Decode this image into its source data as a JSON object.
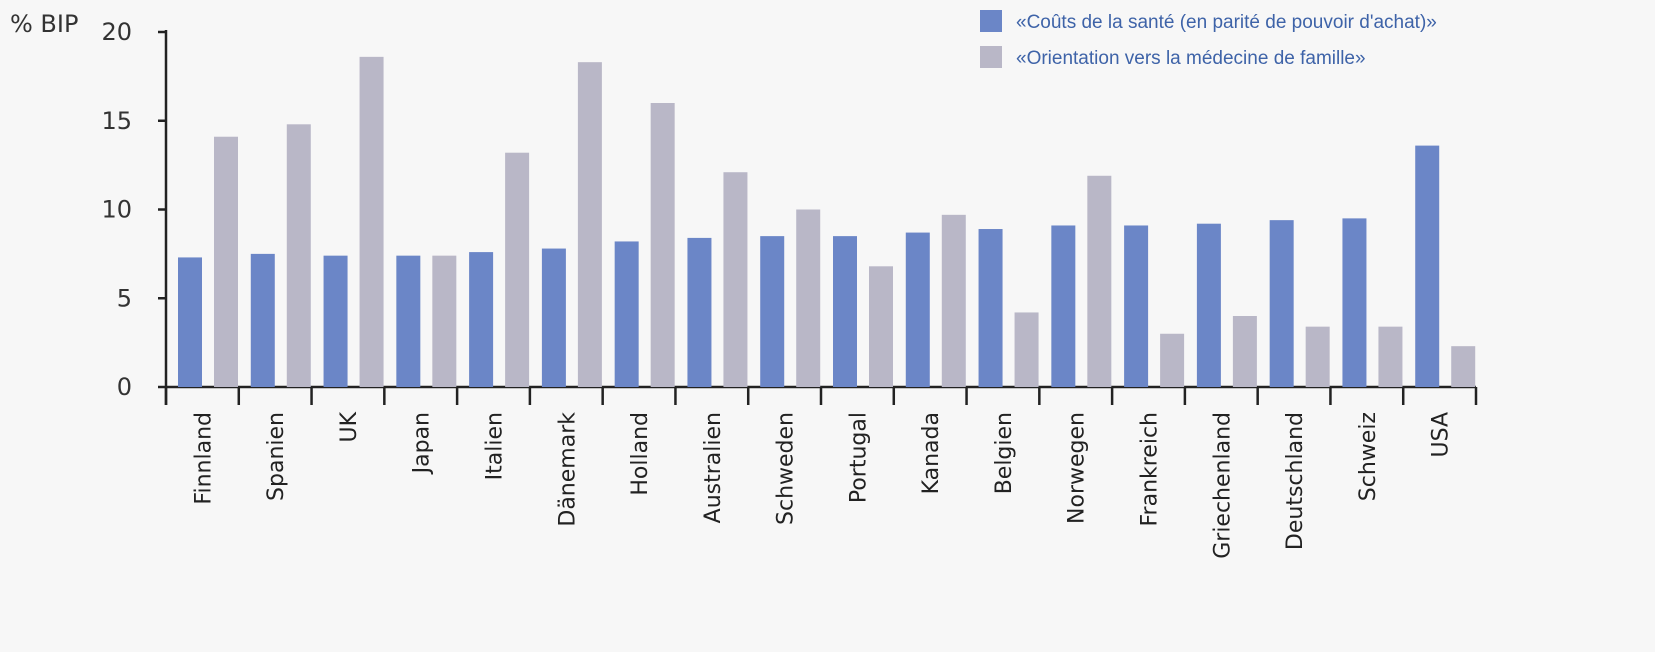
{
  "chart_data": {
    "type": "bar",
    "ylabel": "% BIP",
    "ylim": [
      0,
      20
    ],
    "yticks": [
      0,
      5,
      10,
      15,
      20
    ],
    "grid": false,
    "legend_placement": "top-right",
    "categories": [
      "Finnland",
      "Spanien",
      "UK",
      "Japan",
      "Italien",
      "Dänemark",
      "Holland",
      "Australien",
      "Schweden",
      "Portugal",
      "Kanada",
      "Belgien",
      "Norwegen",
      "Frankreich",
      "Griechenland",
      "Deutschland",
      "Schweiz",
      "USA"
    ],
    "series": [
      {
        "name": "«Coûts de la santé (en parité de pouvoir d'achat)»",
        "color": "#6b86c7",
        "values": [
          7.3,
          7.5,
          7.4,
          7.4,
          7.6,
          7.8,
          8.2,
          8.4,
          8.5,
          8.5,
          8.7,
          8.9,
          9.1,
          9.1,
          9.2,
          9.4,
          9.5,
          13.6
        ]
      },
      {
        "name": "«Orientation vers la médecine de famille»",
        "color": "#b9b7c7",
        "values": [
          14.1,
          14.8,
          18.6,
          7.4,
          13.2,
          18.3,
          16.0,
          12.1,
          10.0,
          6.8,
          9.7,
          4.2,
          11.9,
          3.0,
          4.0,
          3.4,
          3.4,
          2.3
        ]
      }
    ]
  }
}
